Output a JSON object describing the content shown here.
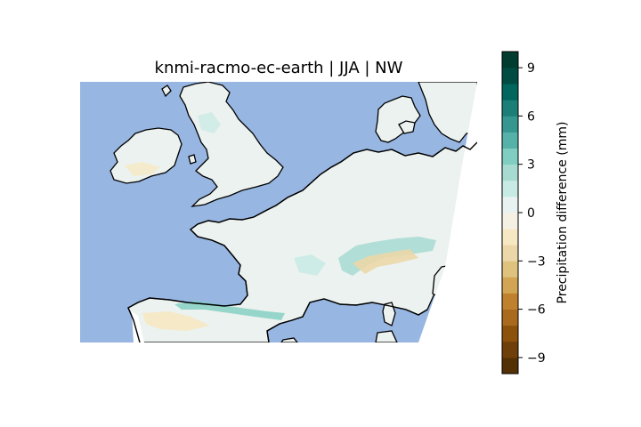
{
  "title": "knmi-racmo-ec-earth | JJA | NW",
  "colorbar": {
    "label": "Precipitation difference (mm)",
    "min": -10,
    "max": 10,
    "levels": 20,
    "tick_labels": [
      {
        "value": 9,
        "text": "9"
      },
      {
        "value": 6,
        "text": "6"
      },
      {
        "value": 3,
        "text": "3"
      },
      {
        "value": 0,
        "text": "0"
      },
      {
        "value": -3,
        "text": "−3"
      },
      {
        "value": -6,
        "text": "−6"
      },
      {
        "value": -9,
        "text": "−9"
      }
    ],
    "colors": [
      "#543005",
      "#6f3f0a",
      "#8c510a",
      "#a96a1d",
      "#bf812d",
      "#d1a553",
      "#dfc27d",
      "#ecd7a8",
      "#f6e8c3",
      "#f5f0e4",
      "#e8f3f1",
      "#c7eae5",
      "#a7dbd2",
      "#80cdc1",
      "#56b1a8",
      "#35978f",
      "#1b7f77",
      "#01665e",
      "#004c43",
      "#003c30"
    ]
  },
  "map": {
    "colors": {
      "ocean": "#97b6e1",
      "land": "#ecf2ef",
      "coast": "#000000"
    }
  }
}
